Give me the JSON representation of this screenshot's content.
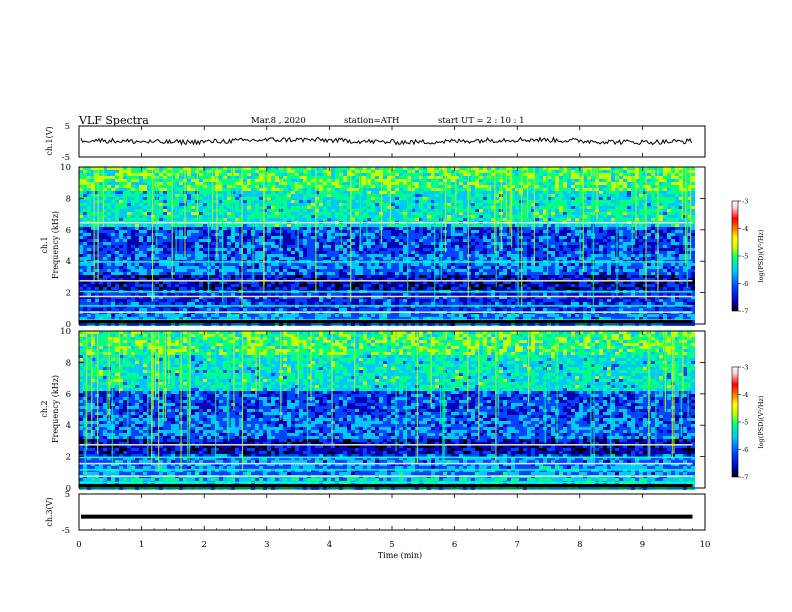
{
  "header": {
    "title": "VLF  Spectra",
    "date": "Mar.8  , 2020",
    "station": "station=ATH",
    "start": "start  UT  =   2  : 10 : 1"
  },
  "chart_data": [
    {
      "type": "line",
      "name": "ch1-waveform",
      "ylabel": "ch.1(V)",
      "ylim": [
        -5,
        5
      ],
      "yticks": [
        "5",
        "-5"
      ],
      "xlim": [
        0,
        10
      ],
      "level_approx": 0.2
    },
    {
      "type": "heatmap",
      "name": "ch1-spectrogram",
      "ylabel": "ch.1\nFrequency  (kHz)",
      "ylabel_line1": "ch.1",
      "ylabel_line2": "Frequency  (kHz)",
      "ylim": [
        0,
        10
      ],
      "yticks": [
        "0",
        "2",
        "4",
        "6",
        "8",
        "10"
      ],
      "xlim": [
        0,
        9.8
      ],
      "colorbar": {
        "label": "log(PSD)(V²/Hz)",
        "ticks": [
          "-3",
          "-4",
          "-5",
          "-6",
          "-7"
        ],
        "range": [
          -7,
          -3
        ]
      }
    },
    {
      "type": "heatmap",
      "name": "ch2-spectrogram",
      "ylabel_line1": "ch.2",
      "ylabel_line2": "Frequency  (kHz)",
      "ylim": [
        0,
        10
      ],
      "yticks": [
        "0",
        "2",
        "4",
        "6",
        "8",
        "10"
      ],
      "xlim": [
        0,
        9.8
      ],
      "colorbar": {
        "label": "log(PSD)(V²/Hz)",
        "ticks": [
          "-3",
          "-4",
          "-5",
          "-6",
          "-7"
        ],
        "range": [
          -7,
          -3
        ]
      }
    },
    {
      "type": "line",
      "name": "ch3-waveform",
      "ylabel": "ch.3(V)",
      "ylim": [
        -5,
        5
      ],
      "yticks": [
        "5",
        "-5"
      ],
      "xlim": [
        0,
        10
      ],
      "level_approx": -1.3
    }
  ],
  "x_axis": {
    "label": "Time  (min)",
    "ticks": [
      "0",
      "1",
      "2",
      "3",
      "4",
      "5",
      "6",
      "7",
      "8",
      "9",
      "10"
    ],
    "range": [
      0,
      10
    ]
  },
  "colors": {
    "spectral": [
      "#000000",
      "#0000b4",
      "#0044ff",
      "#00c8ff",
      "#00ff88",
      "#c8ff00",
      "#ffff00",
      "#ff8800",
      "#ff0000",
      "#ffd0d0",
      "#ffffff"
    ]
  }
}
